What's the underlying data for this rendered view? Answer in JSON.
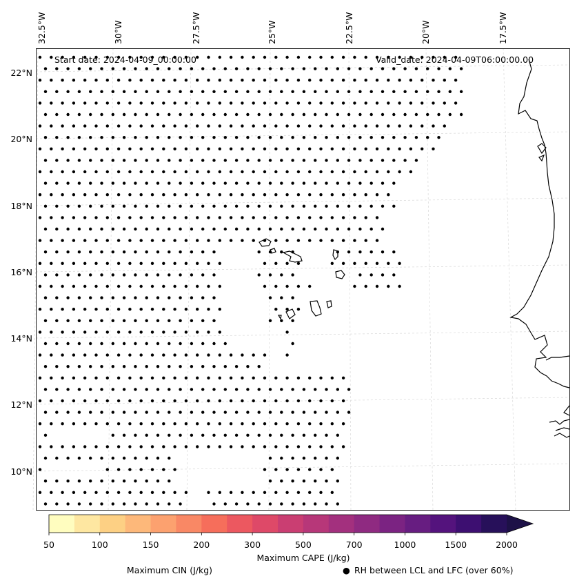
{
  "map": {
    "start_date": "Start date: 2024-04-09_00:00:00",
    "valid_date": "Valid_date: 2024-04-09T06:00:00.00",
    "lon_labels": [
      "32.5°W",
      "30°W",
      "27.5°W",
      "25°W",
      "22.5°W",
      "20°W",
      "17.5°W"
    ],
    "lat_labels": [
      "22°N",
      "20°N",
      "18°N",
      "16°N",
      "14°N",
      "12°N",
      "10°N"
    ],
    "gridlines": true
  },
  "colorbar": {
    "tick_labels": [
      "50",
      "100",
      "150",
      "200",
      "300",
      "500",
      "700",
      "1000",
      "1500",
      "2000"
    ],
    "colors": [
      "#fffdbf",
      "#fee7a1",
      "#fdd084",
      "#fdb87a",
      "#fca16f",
      "#f98865",
      "#f66e5b",
      "#ec5860",
      "#de4968",
      "#ca3e72",
      "#b73779",
      "#a3307e",
      "#8f2a81",
      "#7b2382",
      "#671d81",
      "#54137d",
      "#3d0f71",
      "#27105a",
      "#1d1147"
    ],
    "label": "Maximum CAPE (J/kg)"
  },
  "legend": {
    "cin_label": "Maximum CIN (J/kg)",
    "cin_color": "#ff0000",
    "rh_symbol": "●",
    "rh_label": "RH between LCL and LFC (over 60%)"
  }
}
